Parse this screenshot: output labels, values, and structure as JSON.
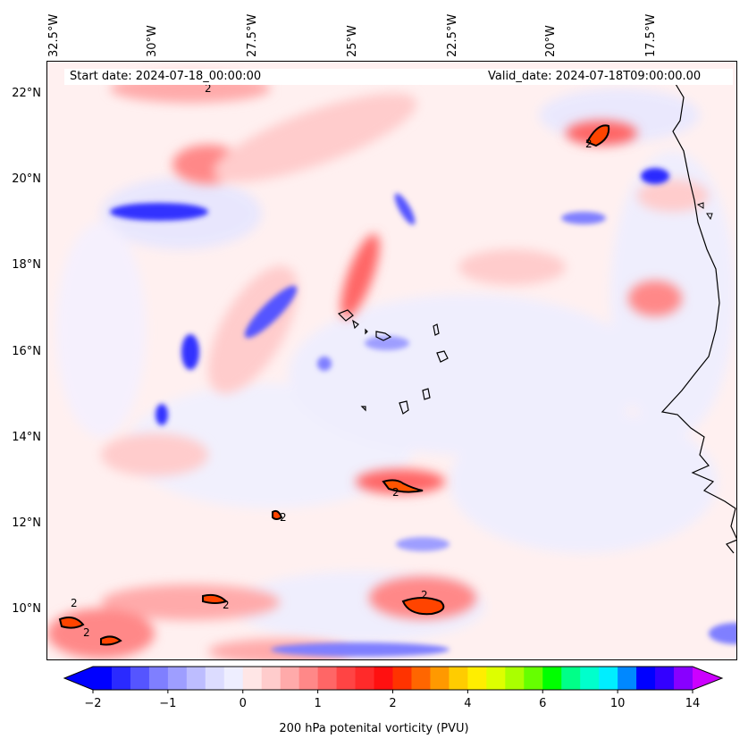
{
  "header": {
    "start_text": "Start date: 2024-07-18_00:00:00",
    "valid_text": "Valid_date: 2024-07-18T09:00:00.00"
  },
  "map": {
    "lon_labels": [
      "32.5°W",
      "30°W",
      "27.5°W",
      "25°W",
      "22.5°W",
      "20°W",
      "17.5°W"
    ],
    "lat_labels": [
      "22°N",
      "20°N",
      "18°N",
      "16°N",
      "14°N",
      "12°N",
      "10°N"
    ],
    "contour_label": "2"
  },
  "colorbar": {
    "title": "200 hPa potenital vorticity (PVU)",
    "ticks": [
      "−2",
      "−1",
      "0",
      "1",
      "2",
      "4",
      "6",
      "10",
      "14"
    ],
    "colors": [
      "#0000ff",
      "#2a2aff",
      "#5555ff",
      "#7f7fff",
      "#9e9eff",
      "#bdbdff",
      "#dcdcff",
      "#eeeeff",
      "#ffe6e6",
      "#ffcccc",
      "#ffaaaa",
      "#ff8888",
      "#ff6666",
      "#ff4444",
      "#ff2a2a",
      "#ff1010",
      "#ff3300",
      "#ff6600",
      "#ff9900",
      "#ffcc00",
      "#ffee00",
      "#ddff00",
      "#aaff00",
      "#66ff00",
      "#00ff00",
      "#00ff88",
      "#00ffcc",
      "#00eeff",
      "#0088ff",
      "#0000ff",
      "#3300ff",
      "#8800ff"
    ]
  }
}
